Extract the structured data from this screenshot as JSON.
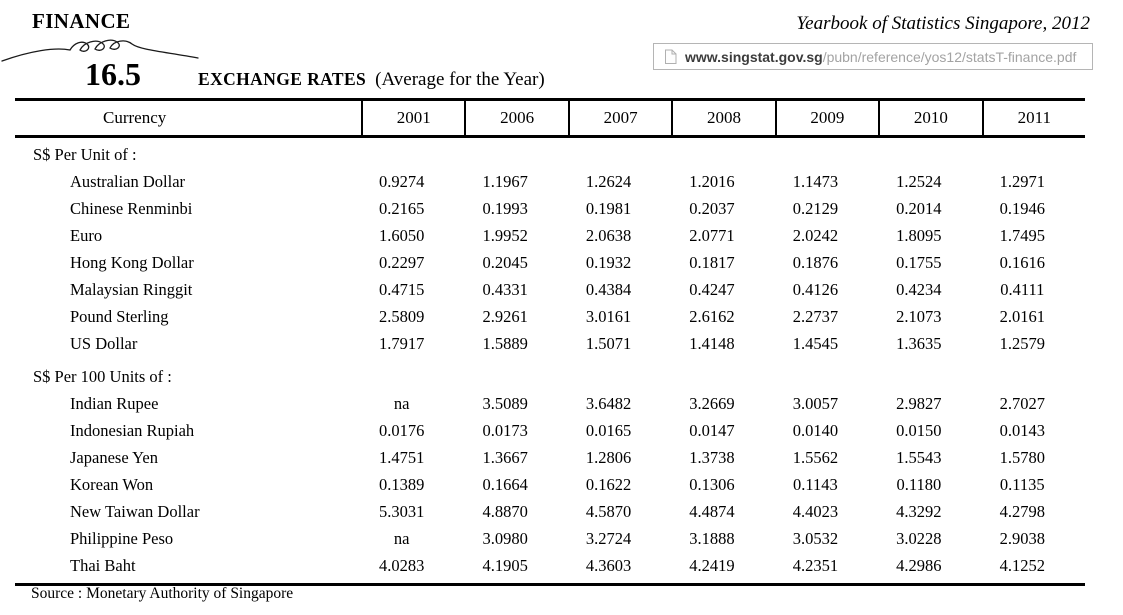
{
  "header": {
    "category": "FINANCE",
    "publication": "Yearbook of Statistics Singapore, 2012",
    "url": {
      "icon": "document-page-icon",
      "domain": "www.singstat.gov.sg",
      "path": "/pubn/reference/yos12/statsT-finance.pdf"
    }
  },
  "heading": {
    "table_number": "16.5",
    "title": "EXCHANGE RATES",
    "subtitle": "(Average for the Year)"
  },
  "chart_data": {
    "type": "table",
    "title": "16.5 EXCHANGE RATES (Average for the Year)",
    "columns": [
      "Currency",
      "2001",
      "2006",
      "2007",
      "2008",
      "2009",
      "2010",
      "2011"
    ],
    "sections": [
      {
        "label": "S$ Per Unit of :",
        "rows": [
          {
            "currency": "Australian Dollar",
            "values": [
              "0.9274",
              "1.1967",
              "1.2624",
              "1.2016",
              "1.1473",
              "1.2524",
              "1.2971"
            ]
          },
          {
            "currency": "Chinese Renminbi",
            "values": [
              "0.2165",
              "0.1993",
              "0.1981",
              "0.2037",
              "0.2129",
              "0.2014",
              "0.1946"
            ]
          },
          {
            "currency": "Euro",
            "values": [
              "1.6050",
              "1.9952",
              "2.0638",
              "2.0771",
              "2.0242",
              "1.8095",
              "1.7495"
            ]
          },
          {
            "currency": "Hong Kong Dollar",
            "values": [
              "0.2297",
              "0.2045",
              "0.1932",
              "0.1817",
              "0.1876",
              "0.1755",
              "0.1616"
            ]
          },
          {
            "currency": "Malaysian Ringgit",
            "values": [
              "0.4715",
              "0.4331",
              "0.4384",
              "0.4247",
              "0.4126",
              "0.4234",
              "0.4111"
            ]
          },
          {
            "currency": "Pound Sterling",
            "values": [
              "2.5809",
              "2.9261",
              "3.0161",
              "2.6162",
              "2.2737",
              "2.1073",
              "2.0161"
            ]
          },
          {
            "currency": "US Dollar",
            "values": [
              "1.7917",
              "1.5889",
              "1.5071",
              "1.4148",
              "1.4545",
              "1.3635",
              "1.2579"
            ]
          }
        ]
      },
      {
        "label": "S$ Per 100 Units of :",
        "rows": [
          {
            "currency": "Indian Rupee",
            "values": [
              "na",
              "3.5089",
              "3.6482",
              "3.2669",
              "3.0057",
              "2.9827",
              "2.7027"
            ]
          },
          {
            "currency": "Indonesian Rupiah",
            "values": [
              "0.0176",
              "0.0173",
              "0.0165",
              "0.0147",
              "0.0140",
              "0.0150",
              "0.0143"
            ]
          },
          {
            "currency": "Japanese Yen",
            "values": [
              "1.4751",
              "1.3667",
              "1.2806",
              "1.3738",
              "1.5562",
              "1.5543",
              "1.5780"
            ]
          },
          {
            "currency": "Korean Won",
            "values": [
              "0.1389",
              "0.1664",
              "0.1622",
              "0.1306",
              "0.1143",
              "0.1180",
              "0.1135"
            ]
          },
          {
            "currency": "New Taiwan Dollar",
            "values": [
              "5.3031",
              "4.8870",
              "4.5870",
              "4.4874",
              "4.4023",
              "4.3292",
              "4.2798"
            ]
          },
          {
            "currency": "Philippine Peso",
            "values": [
              "na",
              "3.0980",
              "3.2724",
              "3.1888",
              "3.0532",
              "3.0228",
              "2.9038"
            ]
          },
          {
            "currency": "Thai Baht",
            "values": [
              "4.0283",
              "4.1905",
              "4.3603",
              "4.2419",
              "4.2351",
              "4.2986",
              "4.1252"
            ]
          }
        ]
      }
    ]
  },
  "footer": {
    "source": "Source : Monetary Authority of Singapore"
  }
}
